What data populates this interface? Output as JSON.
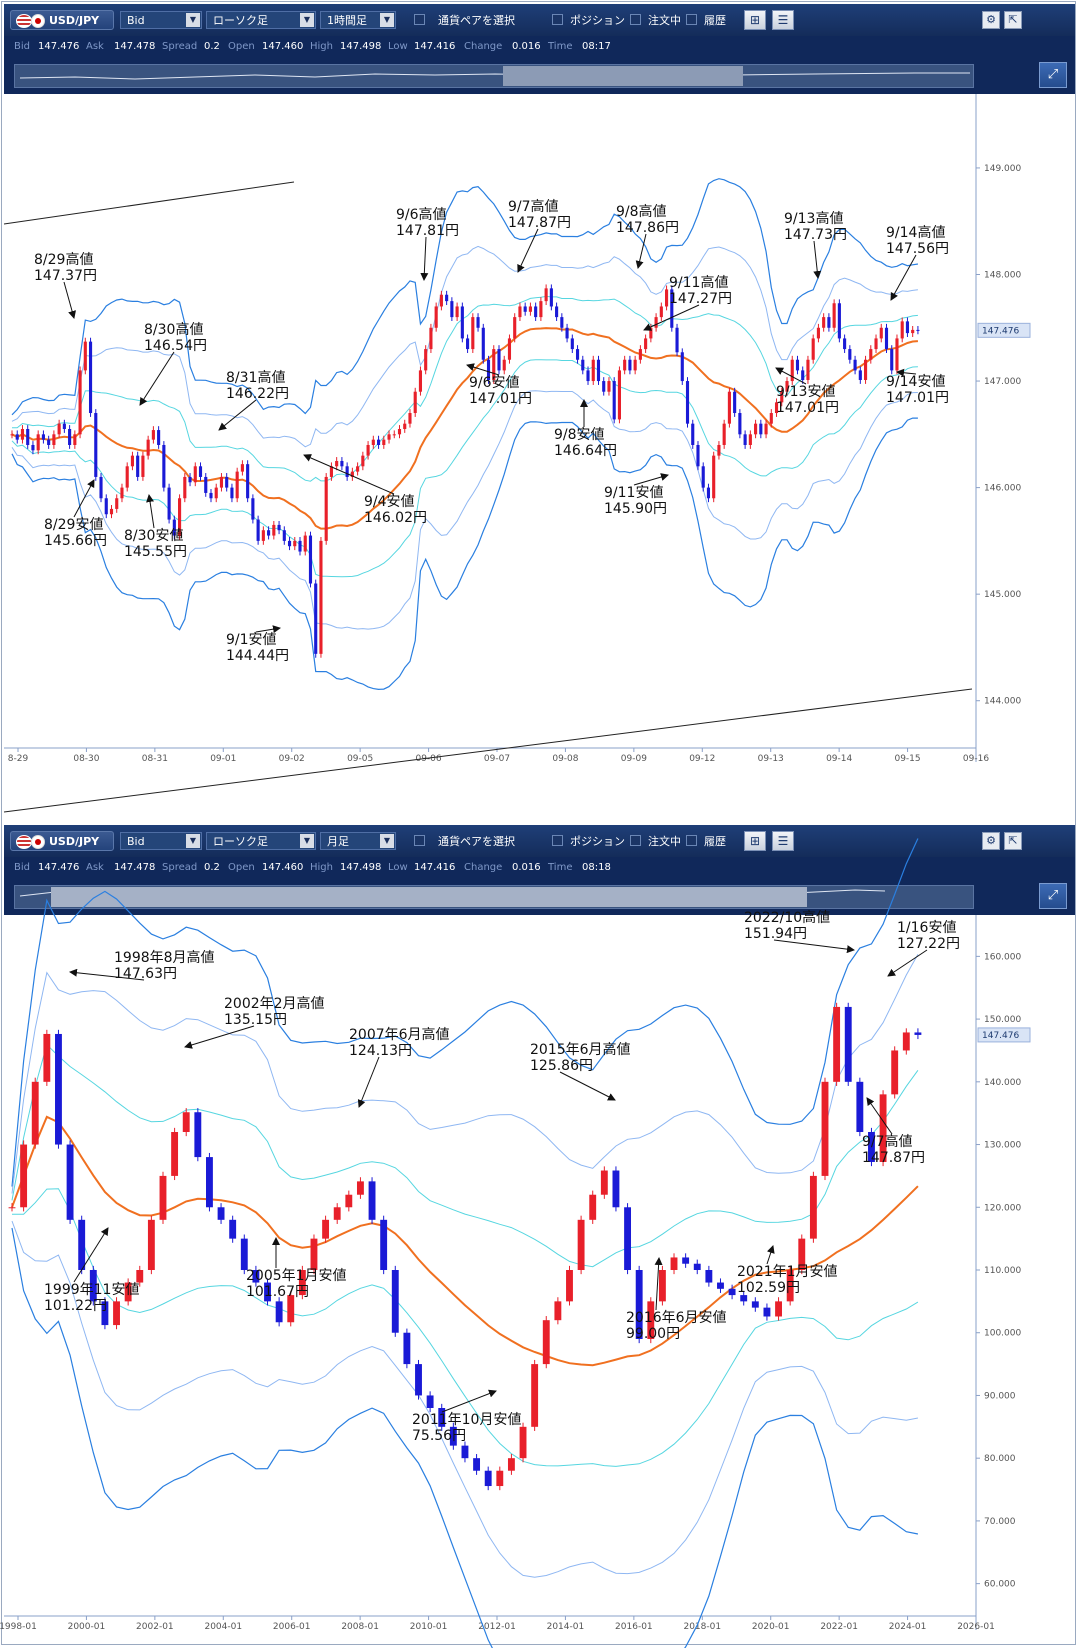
{
  "panels": [
    {
      "toolbar": {
        "pair": "USD/JPY",
        "price_type": "Bid",
        "chart_type": "ローソク足",
        "period": "1時間足",
        "select_pair": "通貨ペアを選択",
        "position": "ポジション",
        "orders": "注文中",
        "history": "履歴"
      },
      "quote": {
        "bid_label": "Bid",
        "bid": "147.476",
        "ask_label": "Ask",
        "ask": "147.478",
        "spread_label": "Spread",
        "spread": "0.2",
        "open_label": "Open",
        "open": "147.460",
        "high_label": "High",
        "high": "147.498",
        "low_label": "Low",
        "low": "147.416",
        "change_label": "Change",
        "change": "0.016",
        "time_label": "Time",
        "time": "08:17"
      },
      "chart_data": {
        "type": "candlestick",
        "y_ticks": [
          "149.000",
          "148.000",
          "147.000",
          "146.000",
          "145.000",
          "144.000"
        ],
        "ylim": [
          143.5,
          149.6
        ],
        "x_ticks": [
          "8-29",
          "08-30",
          "08-31",
          "09-01",
          "09-02",
          "09-05",
          "09-06",
          "09-07",
          "09-08",
          "09-09",
          "09-12",
          "09-13",
          "09-14",
          "09-15",
          "09-16"
        ],
        "current_price": "147.476",
        "closes": [
          146.5,
          146.45,
          146.55,
          146.4,
          146.35,
          146.5,
          146.45,
          146.4,
          146.5,
          146.6,
          146.55,
          146.4,
          146.5,
          147.1,
          147.37,
          146.7,
          146.1,
          145.9,
          145.75,
          145.8,
          145.9,
          146.0,
          146.2,
          146.3,
          146.1,
          146.3,
          146.45,
          146.54,
          146.4,
          146.0,
          145.7,
          145.55,
          145.9,
          146.1,
          146.05,
          146.2,
          146.1,
          145.95,
          145.9,
          146.0,
          146.1,
          146.0,
          145.9,
          146.15,
          146.22,
          145.9,
          145.7,
          145.5,
          145.6,
          145.55,
          145.65,
          145.6,
          145.5,
          145.45,
          145.5,
          145.4,
          145.55,
          145.1,
          144.44,
          145.5,
          146.1,
          146.2,
          146.25,
          146.2,
          146.1,
          146.15,
          146.2,
          146.3,
          146.4,
          146.45,
          146.4,
          146.45,
          146.5,
          146.5,
          146.55,
          146.6,
          146.7,
          146.9,
          147.1,
          147.3,
          147.5,
          147.7,
          147.81,
          147.75,
          147.6,
          147.7,
          147.4,
          147.3,
          147.6,
          147.5,
          147.2,
          147.01,
          147.3,
          147.1,
          147.2,
          147.4,
          147.6,
          147.7,
          147.65,
          147.7,
          147.6,
          147.75,
          147.87,
          147.7,
          147.6,
          147.5,
          147.4,
          147.3,
          147.2,
          147.1,
          147.0,
          147.2,
          147.0,
          146.9,
          147.0,
          146.64,
          147.1,
          147.2,
          147.1,
          147.2,
          147.3,
          147.4,
          147.5,
          147.6,
          147.7,
          147.86,
          147.5,
          147.27,
          147.0,
          146.6,
          146.4,
          146.2,
          146.0,
          145.9,
          146.3,
          146.4,
          146.6,
          146.9,
          146.7,
          146.5,
          146.4,
          146.5,
          146.6,
          146.5,
          146.6,
          146.7,
          146.8,
          146.9,
          147.0,
          147.2,
          147.1,
          147.01,
          147.2,
          147.4,
          147.5,
          147.6,
          147.5,
          147.73,
          147.4,
          147.3,
          147.2,
          147.1,
          147.01,
          147.2,
          147.3,
          147.4,
          147.5,
          147.3,
          147.1,
          147.4,
          147.56,
          147.45,
          147.48,
          147.476
        ]
      },
      "annotations": [
        {
          "date": "8/29高値",
          "price": "147.37円"
        },
        {
          "date": "8/29安値",
          "price": "145.66円"
        },
        {
          "date": "8/30高値",
          "price": "146.54円"
        },
        {
          "date": "8/30安値",
          "price": "145.55円"
        },
        {
          "date": "8/31高値",
          "price": "146.22円"
        },
        {
          "date": "9/1安値",
          "price": "144.44円"
        },
        {
          "date": "9/4安値",
          "price": "146.02円"
        },
        {
          "date": "9/6高値",
          "price": "147.81円"
        },
        {
          "date": "9/6安値",
          "price": "147.01円"
        },
        {
          "date": "9/7高値",
          "price": "147.87円"
        },
        {
          "date": "9/8高値",
          "price": "147.86円"
        },
        {
          "date": "9/8安値",
          "price": "146.64円"
        },
        {
          "date": "9/11高値",
          "price": "147.27円"
        },
        {
          "date": "9/11安値",
          "price": "145.90円"
        },
        {
          "date": "9/13高値",
          "price": "147.73円"
        },
        {
          "date": "9/13安値",
          "price": "147.01円"
        },
        {
          "date": "9/14高値",
          "price": "147.56円"
        },
        {
          "date": "9/14安値",
          "price": "147.01円"
        }
      ]
    },
    {
      "toolbar": {
        "pair": "USD/JPY",
        "price_type": "Bid",
        "chart_type": "ローソク足",
        "period": "月足",
        "select_pair": "通貨ペアを選択",
        "position": "ポジション",
        "orders": "注文中",
        "history": "履歴"
      },
      "quote": {
        "bid_label": "Bid",
        "bid": "147.476",
        "ask_label": "Ask",
        "ask": "147.478",
        "spread_label": "Spread",
        "spread": "0.2",
        "open_label": "Open",
        "open": "147.460",
        "high_label": "High",
        "high": "147.498",
        "low_label": "Low",
        "low": "147.416",
        "change_label": "Change",
        "change": "0.016",
        "time_label": "Time",
        "time": "08:18"
      },
      "chart_data": {
        "type": "candlestick",
        "y_ticks": [
          "160.000",
          "150.000",
          "140.000",
          "130.000",
          "120.000",
          "110.000",
          "100.000",
          "90.000",
          "80.000",
          "70.000",
          "60.000"
        ],
        "ylim": [
          55,
          165
        ],
        "x_ticks": [
          "1998-01",
          "2000-01",
          "2002-01",
          "2004-01",
          "2006-01",
          "2008-01",
          "2010-01",
          "2012-01",
          "2014-01",
          "2016-01",
          "2018-01",
          "2020-01",
          "2022-01",
          "2024-01",
          "2026-01"
        ],
        "current_price": "147.476",
        "closes": [
          120,
          130,
          140,
          147.63,
          130,
          118,
          110,
          105,
          101.22,
          105,
          108,
          110,
          118,
          125,
          132,
          135.15,
          128,
          120,
          118,
          115,
          110,
          108,
          105,
          101.67,
          106,
          110,
          115,
          118,
          120,
          122,
          124.13,
          118,
          110,
          100,
          95,
          90,
          88,
          85,
          82,
          80,
          78,
          75.56,
          78,
          80,
          85,
          95,
          102,
          105,
          110,
          118,
          122,
          125.86,
          120,
          110,
          99,
          105,
          110,
          112,
          111,
          110,
          108,
          107,
          106,
          105,
          104,
          102.59,
          105,
          110,
          115,
          125,
          140,
          151.94,
          140,
          132,
          127.22,
          138,
          145,
          147.87,
          147.476
        ]
      },
      "annotations": [
        {
          "date": "1998年8月高値",
          "price": "147.63円"
        },
        {
          "date": "1999年11安値",
          "price": "101.22円"
        },
        {
          "date": "2002年2月高値",
          "price": "135.15円"
        },
        {
          "date": "2005年1月安値",
          "price": "101.67円"
        },
        {
          "date": "2007年6月高値",
          "price": "124.13円"
        },
        {
          "date": "2011年10月安値",
          "price": "75.56円"
        },
        {
          "date": "2015年6月高値",
          "price": "125.86円"
        },
        {
          "date": "2016年6月安値",
          "price": "99.00円"
        },
        {
          "date": "2021年1月安値",
          "price": "102.59円"
        },
        {
          "date": "2022/10高値",
          "price": "151.94円"
        },
        {
          "date": "1/16安値",
          "price": "127.22円"
        },
        {
          "date": "9/7高値",
          "price": "147.87円"
        }
      ]
    }
  ],
  "colors": {
    "up": "#e8202a",
    "down": "#1a1ad6",
    "ma": "#f07020",
    "band1": "#2a7fe0",
    "band2": "#8fb7f2",
    "band3": "#56d6e0",
    "toolbar_bg": "#1f3f78"
  },
  "icons": [
    "flag-us-icon",
    "flag-jp-icon",
    "chart-settings-icon",
    "indicator-icon",
    "gear-icon",
    "popout-icon",
    "expand-icon"
  ]
}
